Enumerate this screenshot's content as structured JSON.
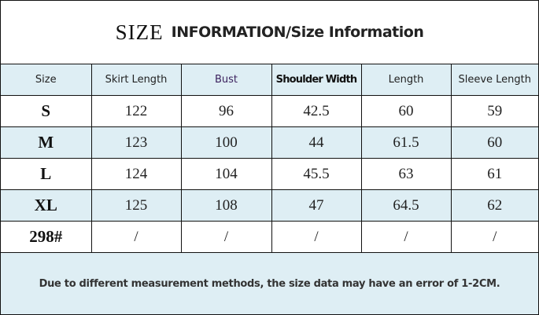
{
  "title": {
    "part1": "SIZE",
    "part2": "INFORMATION/Size Information"
  },
  "headers": [
    "Size",
    "Skirt Length",
    "Bust",
    "Shoulder Width",
    "Length",
    "Sleeve Length"
  ],
  "header_colors": {
    "Bust": "#3a1f5c"
  },
  "rows": [
    [
      "S",
      "122",
      "96",
      "42.5",
      "60",
      "59"
    ],
    [
      "M",
      "123",
      "100",
      "44",
      "61.5",
      "60"
    ],
    [
      "L",
      "124",
      "104",
      "45.5",
      "63",
      "61"
    ],
    [
      "XL",
      "125",
      "108",
      "47",
      "64.5",
      "62"
    ],
    [
      "298#",
      "/",
      "/",
      "/",
      "/",
      "/"
    ]
  ],
  "footer": "Due to different measurement methods, the size data may have an error of 1-2CM.",
  "colors": {
    "row_highlight": "#deeef4",
    "border": "#111111"
  }
}
